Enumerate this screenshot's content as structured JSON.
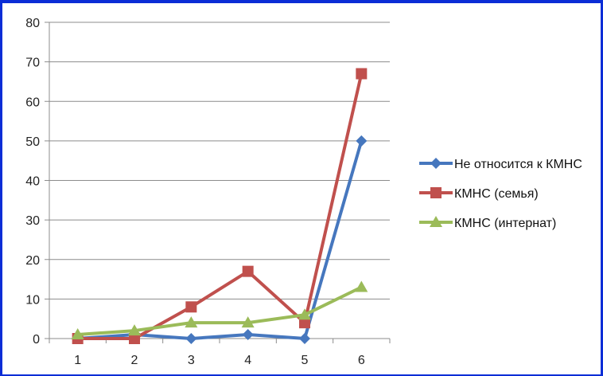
{
  "chart_data": {
    "type": "line",
    "title": "",
    "xlabel": "",
    "ylabel": "",
    "x": [
      1,
      2,
      3,
      4,
      5,
      6
    ],
    "ylim": [
      0,
      80
    ],
    "yticks": [
      0,
      10,
      20,
      30,
      40,
      50,
      60,
      70,
      80
    ],
    "grid": "horizontal",
    "legend_position": "right",
    "series": [
      {
        "name": "Не относится к КМНС",
        "values": [
          0,
          1,
          0,
          1,
          0,
          50
        ],
        "color": "#4677be",
        "marker": "diamond"
      },
      {
        "name": "КМНС (семья)",
        "values": [
          0,
          0,
          8,
          17,
          4,
          67
        ],
        "color": "#c0504d",
        "marker": "square"
      },
      {
        "name": "КМНС (интернат)",
        "values": [
          1,
          2,
          4,
          4,
          6,
          13
        ],
        "color": "#9bbb59",
        "marker": "triangle"
      }
    ]
  }
}
